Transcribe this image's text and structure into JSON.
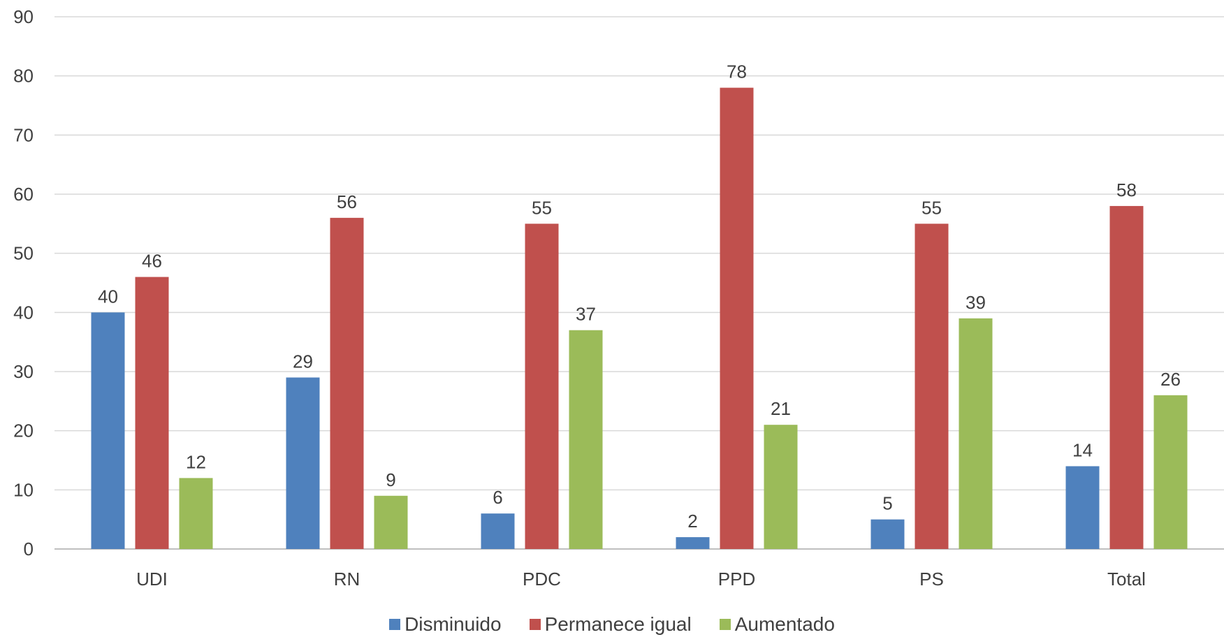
{
  "chart_data": {
    "type": "bar",
    "categories": [
      "UDI",
      "RN",
      "PDC",
      "PPD",
      "PS",
      "Total"
    ],
    "series": [
      {
        "name": "Disminuido",
        "color": "#4f81bd",
        "values": [
          40,
          29,
          6,
          2,
          5,
          14
        ]
      },
      {
        "name": "Permanece igual",
        "color": "#c0504d",
        "values": [
          46,
          56,
          55,
          78,
          55,
          58
        ]
      },
      {
        "name": "Aumentado",
        "color": "#9bbb59",
        "values": [
          12,
          9,
          37,
          21,
          39,
          26
        ]
      }
    ],
    "ylim": [
      0,
      90
    ],
    "yticks": [
      "0",
      "10",
      "20",
      "30",
      "40",
      "50",
      "60",
      "70",
      "80",
      "90"
    ],
    "grid": true,
    "data_labels": true,
    "legend_position": "bottom"
  }
}
